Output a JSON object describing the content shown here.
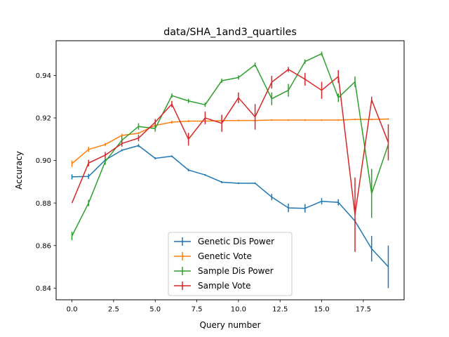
{
  "chart_data": {
    "type": "line",
    "title": "data/SHA_1and3_quartiles",
    "xlabel": "Query number",
    "ylabel": "Accuracy",
    "xlim": [
      -0.95,
      19.95
    ],
    "ylim": [
      0.8345,
      0.9563
    ],
    "xticks": [
      0.0,
      2.5,
      5.0,
      7.5,
      10.0,
      12.5,
      15.0,
      17.5
    ],
    "xtick_labels": [
      "0.0",
      "2.5",
      "5.0",
      "7.5",
      "10.0",
      "12.5",
      "15.0",
      "17.5"
    ],
    "yticks": [
      0.84,
      0.86,
      0.88,
      0.9,
      0.92,
      0.94
    ],
    "ytick_labels": [
      "0.84",
      "0.86",
      "0.88",
      "0.90",
      "0.92",
      "0.94"
    ],
    "grid": false,
    "legend_position": "lower-center",
    "x": [
      0,
      1,
      2,
      3,
      4,
      5,
      6,
      7,
      8,
      9,
      10,
      11,
      12,
      13,
      14,
      15,
      16,
      17,
      18,
      19
    ],
    "series": [
      {
        "name": "Genetic Dis Power",
        "color": "#1f77b4",
        "values": [
          0.8923,
          0.8925,
          0.9002,
          0.9048,
          0.907,
          0.901,
          0.902,
          0.8955,
          0.8932,
          0.8898,
          0.8893,
          0.8893,
          0.8828,
          0.8777,
          0.8775,
          0.8808,
          0.8803,
          0.8715,
          0.8585,
          0.85
        ],
        "errors": [
          0.0012,
          0.0012,
          0.0005,
          0.0005,
          0.0007,
          0.0005,
          0.0004,
          0.0006,
          0.0004,
          0.0005,
          0.0004,
          0.0004,
          0.0015,
          0.002,
          0.002,
          0.0015,
          0.0015,
          0.001,
          0.006,
          0.01
        ]
      },
      {
        "name": "Genetic Vote",
        "color": "#ff7f0e",
        "values": [
          0.8985,
          0.9052,
          0.9075,
          0.9118,
          0.9128,
          0.9165,
          0.918,
          0.9185,
          0.9185,
          0.9187,
          0.9188,
          0.9188,
          0.919,
          0.919,
          0.919,
          0.919,
          0.919,
          0.9193,
          0.9193,
          0.9195
        ],
        "errors": [
          0.0015,
          0.0012,
          0.0008,
          0.0008,
          0.0005,
          0.0005,
          0.0007,
          0.0005,
          0.0005,
          0.0004,
          0.0004,
          0.0004,
          0.0004,
          0.0004,
          0.0004,
          0.0004,
          0.0004,
          0.0004,
          0.0004,
          0.0004
        ]
      },
      {
        "name": "Sample Dis Power",
        "color": "#2ca02c",
        "values": [
          0.8645,
          0.88,
          0.8995,
          0.9095,
          0.916,
          0.915,
          0.9305,
          0.928,
          0.9262,
          0.9375,
          0.939,
          0.945,
          0.929,
          0.933,
          0.9465,
          0.9502,
          0.9295,
          0.937,
          0.8845,
          0.9075
        ],
        "errors": [
          0.002,
          0.0015,
          0.0015,
          0.002,
          0.0015,
          0.0015,
          0.001,
          0.001,
          0.001,
          0.001,
          0.001,
          0.001,
          0.003,
          0.003,
          0.001,
          0.001,
          0.002,
          0.0025,
          0.0115,
          0.0
        ]
      },
      {
        "name": "Sample Vote",
        "color": "#d62728",
        "values": [
          0.88,
          0.8988,
          0.9025,
          0.908,
          0.9105,
          0.918,
          0.9265,
          0.91,
          0.92,
          0.9175,
          0.9295,
          0.9205,
          0.9368,
          0.9428,
          0.9382,
          0.933,
          0.9395,
          0.8745,
          0.9285,
          0.9085
        ],
        "errors": [
          0.0,
          0.0015,
          0.0015,
          0.0015,
          0.0015,
          0.0015,
          0.0015,
          0.003,
          0.003,
          0.004,
          0.0025,
          0.006,
          0.003,
          0.0012,
          0.003,
          0.004,
          0.003,
          0.0175,
          0.0015,
          0.0085
        ]
      }
    ]
  }
}
